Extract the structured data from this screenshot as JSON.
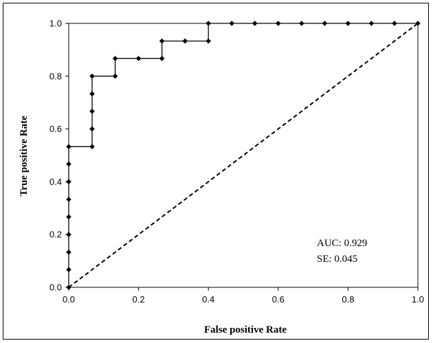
{
  "chart_data": {
    "type": "line",
    "title": "",
    "xlabel": "False positive Rate",
    "ylabel": "True positive Rate",
    "xlim": [
      0.0,
      1.0
    ],
    "ylim": [
      0.0,
      1.0
    ],
    "x_ticks": [
      "0.0",
      "0.2",
      "0.4",
      "0.6",
      "0.8",
      "1.0"
    ],
    "y_ticks": [
      "0.0",
      "0.2",
      "0.4",
      "0.6",
      "0.8",
      "1.0"
    ],
    "tick_values": [
      0.0,
      0.2,
      0.4,
      0.6,
      0.8,
      1.0
    ],
    "grid": false,
    "legend": "none",
    "series": [
      {
        "style": "step-line-with-diamond-markers",
        "color": "#000000",
        "points": [
          [
            0.0,
            0.0
          ],
          [
            0.0,
            0.067
          ],
          [
            0.0,
            0.133
          ],
          [
            0.0,
            0.2
          ],
          [
            0.0,
            0.267
          ],
          [
            0.0,
            0.333
          ],
          [
            0.0,
            0.4
          ],
          [
            0.0,
            0.467
          ],
          [
            0.0,
            0.533
          ],
          [
            0.067,
            0.533
          ],
          [
            0.067,
            0.6
          ],
          [
            0.067,
            0.667
          ],
          [
            0.067,
            0.733
          ],
          [
            0.067,
            0.8
          ],
          [
            0.133,
            0.8
          ],
          [
            0.133,
            0.867
          ],
          [
            0.2,
            0.867
          ],
          [
            0.267,
            0.867
          ],
          [
            0.267,
            0.933
          ],
          [
            0.333,
            0.933
          ],
          [
            0.4,
            0.933
          ],
          [
            0.4,
            1.0
          ],
          [
            0.467,
            1.0
          ],
          [
            0.533,
            1.0
          ],
          [
            0.6,
            1.0
          ],
          [
            0.667,
            1.0
          ],
          [
            0.733,
            1.0
          ],
          [
            0.8,
            1.0
          ],
          [
            0.867,
            1.0
          ],
          [
            0.933,
            1.0
          ],
          [
            1.0,
            1.0
          ]
        ]
      },
      {
        "style": "dashed-reference-line",
        "color": "#000000",
        "points": [
          [
            0.0,
            0.0
          ],
          [
            1.0,
            1.0
          ]
        ]
      }
    ],
    "annotations": [
      "AUC: 0.929",
      "SE: 0.045"
    ]
  }
}
